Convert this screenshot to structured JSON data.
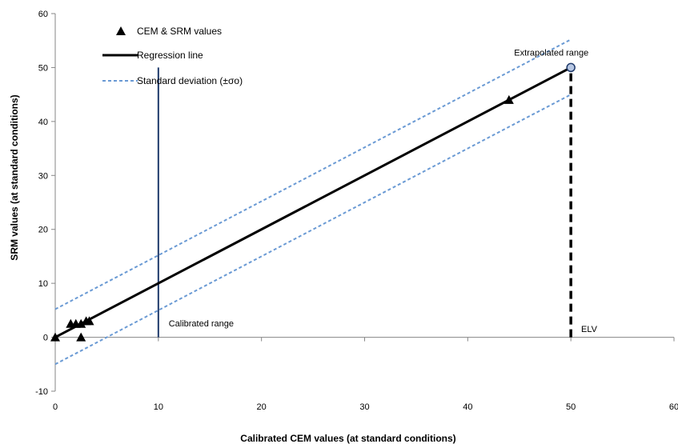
{
  "chart_data": {
    "type": "scatter",
    "xlabel": "Calibrated CEM values (at standard conditions)",
    "ylabel": "SRM values (at standard conditions)",
    "xlim": [
      0,
      60
    ],
    "ylim": [
      -10,
      60
    ],
    "x_ticks": [
      "0",
      "10",
      "20",
      "30",
      "40",
      "50",
      "60"
    ],
    "y_ticks": [
      "-10",
      "0",
      "10",
      "20",
      "30",
      "40",
      "50",
      "60"
    ],
    "grid": false,
    "legend_position": "top-left",
    "colors": {
      "points": "#000000",
      "regression": "#000000",
      "stddev": "#6a9ad4",
      "calibrated_line": "#1f3a6b",
      "elv_line": "#000000",
      "extrapolated_marker": "#b8c8e4"
    },
    "series": [
      {
        "name": "CEM & SRM values",
        "kind": "scatter",
        "marker": "triangle",
        "points": [
          [
            0,
            0
          ],
          [
            1.5,
            2.5
          ],
          [
            2,
            2.5
          ],
          [
            2.5,
            0
          ],
          [
            2.5,
            2.5
          ],
          [
            3,
            3
          ],
          [
            3.3,
            3
          ],
          [
            44,
            44
          ]
        ]
      },
      {
        "name": "Regression line",
        "kind": "line",
        "points": [
          [
            0,
            0
          ],
          [
            50,
            50
          ]
        ]
      },
      {
        "name": "Standard deviation (±σo)",
        "kind": "dashed-line",
        "lines": [
          [
            [
              0,
              5.2
            ],
            [
              50,
              55.2
            ]
          ],
          [
            [
              0,
              -5
            ],
            [
              50,
              45
            ]
          ]
        ]
      }
    ],
    "reference_lines": {
      "calibrated": {
        "x": 10,
        "y_from": 0,
        "y_to": 50
      },
      "elv": {
        "x": 50,
        "y_from": 0,
        "y_to": 50
      }
    },
    "extrapolated_point": [
      50,
      50
    ],
    "annotations": {
      "calibrated_range": {
        "text": "Calibrated range",
        "x": 11,
        "y": 2
      },
      "extrapolated_range": {
        "text": "Extrapolated range",
        "x": 44.5,
        "y": 52.2
      },
      "elv": {
        "text": "ELV",
        "x": 51,
        "y": 1
      }
    }
  }
}
